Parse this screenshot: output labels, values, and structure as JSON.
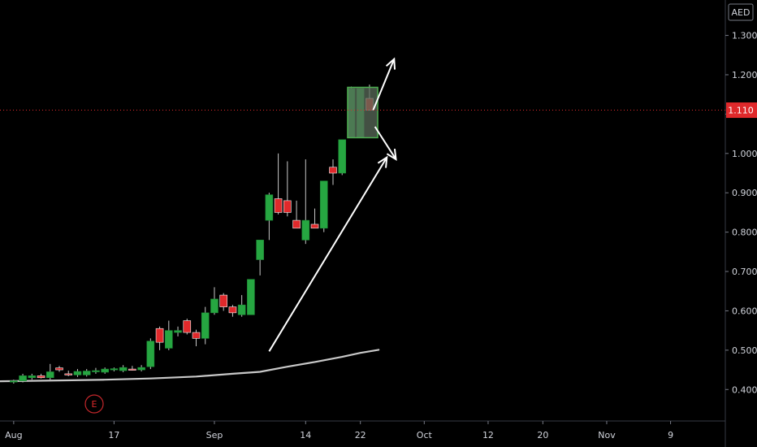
{
  "currency_label": "AED",
  "last_price_label": "1.110",
  "earnings_marker": "E",
  "colors": {
    "up": "#26a641",
    "down": "#e0292b",
    "last_price_line": "#e0292b",
    "moving_average": "#c8c8c8",
    "annotation": "#ffffff",
    "box_fill": "#5a6b5a",
    "box_stroke": "#4caf50"
  },
  "chart_data": {
    "type": "candlestick",
    "y_ticks": [
      "1.300",
      "1.200",
      "1.100",
      "1.000",
      "0.900",
      "0.800",
      "0.700",
      "0.600",
      "0.500",
      "0.400"
    ],
    "y_tick_values": [
      1.3,
      1.2,
      1.1,
      1.0,
      0.9,
      0.8,
      0.7,
      0.6,
      0.5,
      0.4
    ],
    "ylim": [
      0.32,
      1.39
    ],
    "x_ticks": [
      {
        "label": "Aug",
        "index": 0
      },
      {
        "label": "17",
        "index": 11
      },
      {
        "label": "Sep",
        "index": 22
      },
      {
        "label": "14",
        "index": 32
      },
      {
        "label": "22",
        "index": 38
      },
      {
        "label": "Oct",
        "index": 45
      },
      {
        "label": "12",
        "index": 52
      },
      {
        "label": "20",
        "index": 58
      },
      {
        "label": "Nov",
        "index": 65
      },
      {
        "label": "9",
        "index": 72
      }
    ],
    "x_range": [
      -1.5,
      78
    ],
    "last_price": 1.11,
    "candles": [
      {
        "i": 0,
        "o": 0.42,
        "h": 0.425,
        "l": 0.415,
        "c": 0.422
      },
      {
        "i": 1,
        "o": 0.422,
        "h": 0.44,
        "l": 0.418,
        "c": 0.435
      },
      {
        "i": 2,
        "o": 0.43,
        "h": 0.44,
        "l": 0.425,
        "c": 0.435
      },
      {
        "i": 3,
        "o": 0.435,
        "h": 0.44,
        "l": 0.428,
        "c": 0.43
      },
      {
        "i": 4,
        "o": 0.43,
        "h": 0.465,
        "l": 0.425,
        "c": 0.445
      },
      {
        "i": 5,
        "o": 0.455,
        "h": 0.46,
        "l": 0.445,
        "c": 0.45
      },
      {
        "i": 6,
        "o": 0.44,
        "h": 0.448,
        "l": 0.434,
        "c": 0.437
      },
      {
        "i": 7,
        "o": 0.437,
        "h": 0.452,
        "l": 0.432,
        "c": 0.446
      },
      {
        "i": 8,
        "o": 0.437,
        "h": 0.452,
        "l": 0.433,
        "c": 0.447
      },
      {
        "i": 9,
        "o": 0.445,
        "h": 0.455,
        "l": 0.44,
        "c": 0.448
      },
      {
        "i": 10,
        "o": 0.444,
        "h": 0.456,
        "l": 0.44,
        "c": 0.452
      },
      {
        "i": 11,
        "o": 0.45,
        "h": 0.456,
        "l": 0.446,
        "c": 0.453
      },
      {
        "i": 12,
        "o": 0.448,
        "h": 0.462,
        "l": 0.444,
        "c": 0.456
      },
      {
        "i": 13,
        "o": 0.452,
        "h": 0.46,
        "l": 0.448,
        "c": 0.45
      },
      {
        "i": 14,
        "o": 0.45,
        "h": 0.462,
        "l": 0.446,
        "c": 0.456
      },
      {
        "i": 15,
        "o": 0.458,
        "h": 0.53,
        "l": 0.452,
        "c": 0.523
      },
      {
        "i": 16,
        "o": 0.555,
        "h": 0.56,
        "l": 0.5,
        "c": 0.52
      },
      {
        "i": 17,
        "o": 0.505,
        "h": 0.575,
        "l": 0.5,
        "c": 0.55
      },
      {
        "i": 18,
        "o": 0.545,
        "h": 0.56,
        "l": 0.535,
        "c": 0.55
      },
      {
        "i": 19,
        "o": 0.575,
        "h": 0.58,
        "l": 0.54,
        "c": 0.545
      },
      {
        "i": 20,
        "o": 0.545,
        "h": 0.552,
        "l": 0.51,
        "c": 0.53
      },
      {
        "i": 21,
        "o": 0.53,
        "h": 0.61,
        "l": 0.515,
        "c": 0.595
      },
      {
        "i": 22,
        "o": 0.595,
        "h": 0.66,
        "l": 0.59,
        "c": 0.63
      },
      {
        "i": 23,
        "o": 0.64,
        "h": 0.645,
        "l": 0.6,
        "c": 0.61
      },
      {
        "i": 24,
        "o": 0.61,
        "h": 0.615,
        "l": 0.585,
        "c": 0.595
      },
      {
        "i": 25,
        "o": 0.59,
        "h": 0.64,
        "l": 0.585,
        "c": 0.615
      },
      {
        "i": 26,
        "o": 0.59,
        "h": 0.68,
        "l": 0.59,
        "c": 0.68
      },
      {
        "i": 27,
        "o": 0.73,
        "h": 0.78,
        "l": 0.69,
        "c": 0.78
      },
      {
        "i": 28,
        "o": 0.83,
        "h": 0.9,
        "l": 0.78,
        "c": 0.895
      },
      {
        "i": 29,
        "o": 0.885,
        "h": 1.0,
        "l": 0.845,
        "c": 0.85
      },
      {
        "i": 30,
        "o": 0.88,
        "h": 0.98,
        "l": 0.84,
        "c": 0.85
      },
      {
        "i": 31,
        "o": 0.83,
        "h": 0.88,
        "l": 0.81,
        "c": 0.81
      },
      {
        "i": 32,
        "o": 0.78,
        "h": 0.985,
        "l": 0.77,
        "c": 0.83
      },
      {
        "i": 33,
        "o": 0.82,
        "h": 0.86,
        "l": 0.81,
        "c": 0.81
      },
      {
        "i": 34,
        "o": 0.81,
        "h": 0.93,
        "l": 0.8,
        "c": 0.93
      },
      {
        "i": 35,
        "o": 0.965,
        "h": 0.985,
        "l": 0.92,
        "c": 0.95
      },
      {
        "i": 36,
        "o": 0.95,
        "h": 1.035,
        "l": 0.945,
        "c": 1.035
      },
      {
        "i": 37,
        "o": 1.04,
        "h": 1.17,
        "l": 1.04,
        "c": 1.165
      },
      {
        "i": 38,
        "o": 1.04,
        "h": 1.165,
        "l": 1.04,
        "c": 1.165
      },
      {
        "i": 39,
        "o": 1.14,
        "h": 1.175,
        "l": 1.11,
        "c": 1.11
      }
    ],
    "moving_average": [
      {
        "i": -1.5,
        "v": 0.421
      },
      {
        "i": 5,
        "v": 0.423
      },
      {
        "i": 10,
        "v": 0.425
      },
      {
        "i": 15,
        "v": 0.428
      },
      {
        "i": 20,
        "v": 0.433
      },
      {
        "i": 24,
        "v": 0.44
      },
      {
        "i": 27,
        "v": 0.445
      },
      {
        "i": 30,
        "v": 0.458
      },
      {
        "i": 33,
        "v": 0.47
      },
      {
        "i": 36,
        "v": 0.483
      },
      {
        "i": 38,
        "v": 0.493
      },
      {
        "i": 40,
        "v": 0.501
      }
    ]
  }
}
